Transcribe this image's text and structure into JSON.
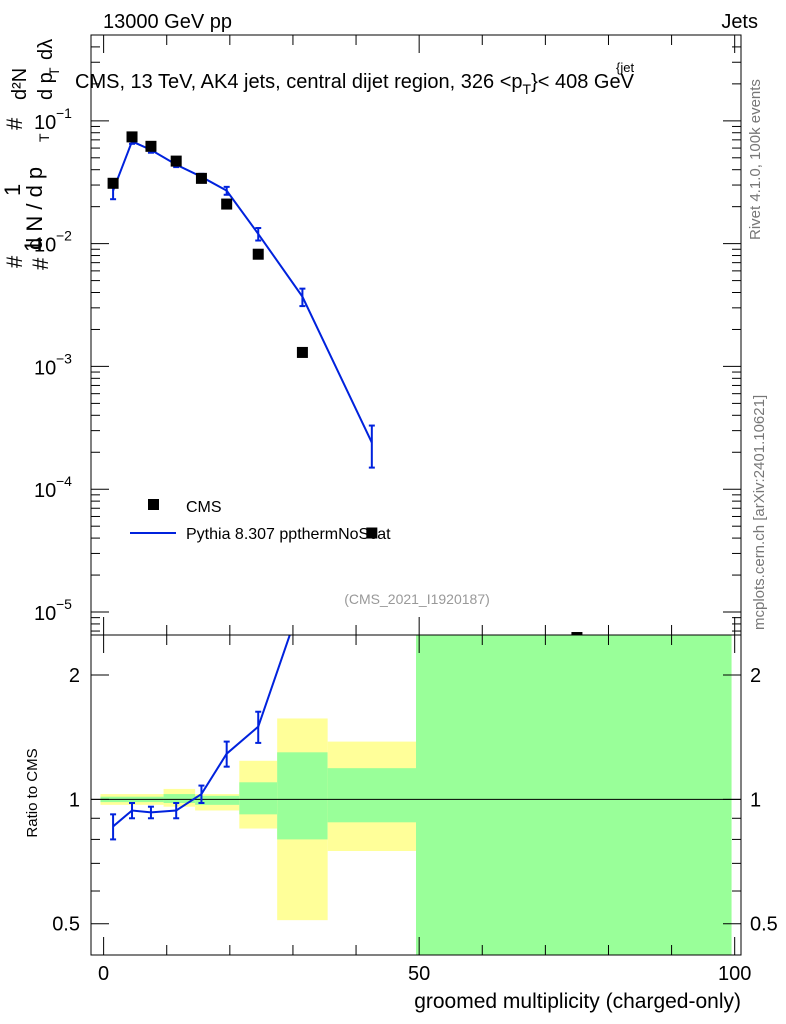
{
  "header": {
    "energy_label": "13000 GeV pp",
    "category_label": "Jets"
  },
  "side_labels": {
    "rivet": "Rivet 4.1.0,  100k events",
    "mcplots": "mcplots.cern.ch [arXiv:2401.10621]"
  },
  "chart_data": [
    {
      "type": "scatter",
      "title": "CMS, 13 TeV, AK4 jets, central dijet region, 326 <p_T^{jet}< 408 GeV",
      "title_parts": {
        "main": "CMS, 13 TeV, AK4 jets, central dijet region, 326 <p",
        "sub": "T",
        "sup": "{jet",
        "tail": "}< 408 GeV"
      },
      "ylabel": "1/(dN/dp_T) d²N/(dp_T dλ)",
      "ylabel_parts": {
        "frac_num": "1",
        "frac_den": "d N / d p",
        "frac_den_sub": "T",
        "d2n": "d²N",
        "den": "d p",
        "den_sub": "T",
        "dlambda": "dλ",
        "hash": "#"
      },
      "yscale": "log",
      "xlim": [
        -2,
        101
      ],
      "ylim": [
        6.5e-06,
        0.5
      ],
      "y_tick_labels": [
        {
          "value": 0.1,
          "base": "10",
          "exp": "−1"
        },
        {
          "value": 0.01,
          "base": "10",
          "exp": "−2"
        },
        {
          "value": 0.001,
          "base": "10",
          "exp": "−3"
        },
        {
          "value": 0.0001,
          "base": "10",
          "exp": "−4"
        },
        {
          "value": 1e-05,
          "base": "10",
          "exp": "−5"
        }
      ],
      "watermark": "(CMS_2021_I1920187)",
      "legend_position": "bottom-left",
      "series": [
        {
          "name": "CMS",
          "style": "markers",
          "color": "#000000",
          "x": [
            1.5,
            4.5,
            7.5,
            11.5,
            15.5,
            19.5,
            24.5,
            31.5,
            42.5,
            75
          ],
          "y": [
            0.031,
            0.074,
            0.062,
            0.047,
            0.034,
            0.021,
            0.0082,
            0.0013,
            4.4e-05,
            6.2e-06
          ]
        },
        {
          "name": "Pythia 8.307 ppthermNoScat",
          "style": "line",
          "color": "#0022dd",
          "x": [
            1.5,
            4.5,
            7.5,
            11.5,
            15.5,
            19.5,
            24.5,
            31.5,
            42.5
          ],
          "y": [
            0.027,
            0.068,
            0.058,
            0.044,
            0.035,
            0.027,
            0.012,
            0.0037,
            0.00024
          ],
          "y_err": [
            0.004,
            0.003,
            0.003,
            0.002,
            0.002,
            0.002,
            0.0014,
            0.0006,
            9e-05
          ]
        }
      ]
    },
    {
      "type": "line",
      "ylabel": "Ratio to CMS",
      "xlabel": "groomed multiplicity (charged-only)",
      "xlim": [
        -2,
        101
      ],
      "ylim": [
        0.42,
        2.5
      ],
      "yscale": "log",
      "x_ticks": [
        0,
        50,
        100
      ],
      "y_ticks": [
        0.5,
        1,
        2
      ],
      "reference_line": 1,
      "uncertainty_bands": [
        {
          "x0": -0.5,
          "x1": 9.5,
          "yellow": [
            0.97,
            1.03
          ],
          "green": [
            0.985,
            1.015
          ]
        },
        {
          "x0": 9.5,
          "x1": 14.5,
          "yellow": [
            0.96,
            1.06
          ],
          "green": [
            0.98,
            1.03
          ]
        },
        {
          "x0": 14.5,
          "x1": 21.5,
          "yellow": [
            0.94,
            1.03
          ],
          "green": [
            0.97,
            1.02
          ]
        },
        {
          "x0": 21.5,
          "x1": 27.5,
          "yellow": [
            0.85,
            1.24
          ],
          "green": [
            0.92,
            1.1
          ]
        },
        {
          "x0": 27.5,
          "x1": 35.5,
          "yellow": [
            0.51,
            1.57
          ],
          "green": [
            0.8,
            1.3
          ]
        },
        {
          "x0": 35.5,
          "x1": 49.5,
          "yellow": [
            0.75,
            1.38
          ],
          "green": [
            0.88,
            1.19
          ]
        },
        {
          "x0": 49.5,
          "x1": 99.5,
          "yellow": [
            0.42,
            2.5
          ],
          "green": [
            0.42,
            2.5
          ]
        }
      ],
      "series": [
        {
          "name": "Pythia 8.307 ppthermNoScat",
          "color": "#0022dd",
          "x": [
            1.5,
            4.5,
            7.5,
            11.5,
            15.5,
            19.5,
            24.5,
            29.5
          ],
          "y": [
            0.86,
            0.94,
            0.93,
            0.94,
            1.03,
            1.29,
            1.5,
            2.5
          ],
          "y_err": [
            0.06,
            0.04,
            0.03,
            0.04,
            0.05,
            0.09,
            0.13,
            0
          ]
        }
      ]
    }
  ]
}
